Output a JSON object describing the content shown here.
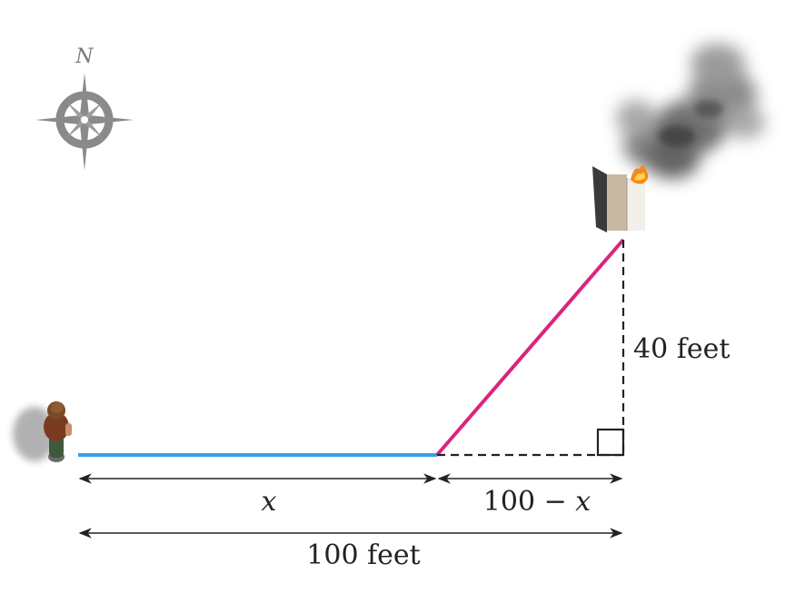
{
  "compass": {
    "north_label": "N"
  },
  "labels": {
    "height": "40 feet",
    "x": "x",
    "remaining": {
      "prefix": "100 − ",
      "var": "x"
    },
    "total": "100 feet"
  },
  "colors": {
    "walk_path": "#3aa0e6",
    "hypotenuse": "#d9267a",
    "dashed": "#222222",
    "compass": "#8a8a8a",
    "smoke": "#5a5a5a"
  }
}
